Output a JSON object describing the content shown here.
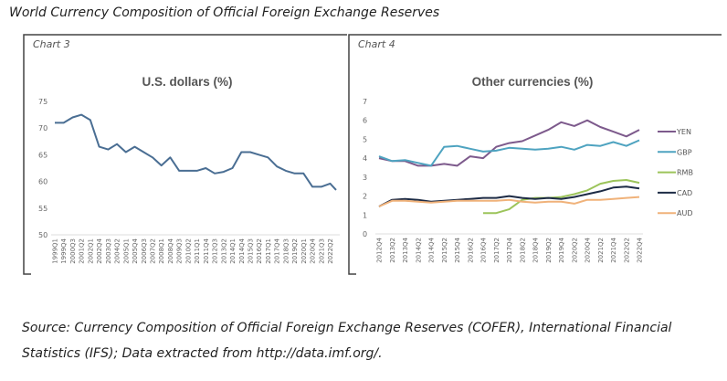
{
  "header": "World Currency Composition of Official Foreign Exchange Reserves",
  "source": "Source: Currency Composition of Official Foreign Exchange Reserves (COFER), International Financial Statistics (IFS); Data extracted from http://data.imf.org/.",
  "chart_data": [
    {
      "type": "line",
      "label": "Chart 3",
      "title": "U.S. dollars (%)",
      "ylim": [
        50,
        75
      ],
      "yticks": [
        50,
        55,
        60,
        65,
        70,
        75
      ],
      "xtick_labels": [
        "1999Q1",
        "1999Q4",
        "2000Q3",
        "2001Q2",
        "2002Q1",
        "2002Q4",
        "2003Q3",
        "2004Q2",
        "2005Q1",
        "2005Q4",
        "2006Q3",
        "2007Q2",
        "2008Q1",
        "2008Q4",
        "2009Q3",
        "2010Q2",
        "2011Q1",
        "2011Q4",
        "2012Q3",
        "2013Q2",
        "2014Q1",
        "2014Q4",
        "2015Q3",
        "2016Q2",
        "2017Q1",
        "2017Q4",
        "2018Q3",
        "2019Q2",
        "2020Q1",
        "2020Q4",
        "2021Q3",
        "2022Q2"
      ],
      "x": [
        "1999Q1",
        "1999Q4",
        "2000Q3",
        "2001Q2",
        "2002Q1",
        "2002Q4",
        "2003Q3",
        "2004Q2",
        "2005Q1",
        "2005Q4",
        "2006Q3",
        "2007Q2",
        "2008Q1",
        "2008Q4",
        "2009Q3",
        "2010Q2",
        "2011Q1",
        "2011Q4",
        "2012Q3",
        "2013Q2",
        "2014Q1",
        "2014Q4",
        "2015Q3",
        "2016Q2",
        "2017Q1",
        "2017Q4",
        "2018Q3",
        "2019Q2",
        "2020Q1",
        "2020Q4",
        "2021Q3",
        "2022Q2",
        "2022Q4"
      ],
      "series": [
        {
          "name": "U.S. dollars",
          "color": "#4a6e93",
          "values": [
            71.0,
            71.0,
            72.0,
            72.5,
            71.5,
            66.5,
            66.0,
            67.0,
            65.5,
            66.5,
            65.5,
            64.5,
            63.0,
            64.5,
            62.0,
            62.0,
            62.0,
            62.5,
            61.5,
            61.8,
            62.5,
            65.5,
            65.5,
            65.0,
            64.5,
            62.8,
            62.0,
            61.5,
            61.5,
            59.0,
            59.0,
            59.6,
            58.4
          ]
        }
      ]
    },
    {
      "type": "line",
      "label": "Chart 4",
      "title": "Other currencies (%)",
      "ylim": [
        0,
        7
      ],
      "yticks": [
        0,
        1,
        2,
        3,
        4,
        5,
        6,
        7
      ],
      "x": [
        "2012Q4",
        "2013Q2",
        "2013Q4",
        "2014Q2",
        "2014Q4",
        "2015Q2",
        "2015Q4",
        "2016Q2",
        "2016Q4",
        "2017Q2",
        "2017Q4",
        "2018Q2",
        "2018Q4",
        "2019Q2",
        "2019Q4",
        "2020Q2",
        "2020Q4",
        "2021Q2",
        "2021Q4",
        "2022Q2",
        "2022Q4"
      ],
      "legend_position": "right",
      "series": [
        {
          "name": "YEN",
          "color": "#7d5a8c",
          "values": [
            4.0,
            3.85,
            3.85,
            3.6,
            3.6,
            3.7,
            3.6,
            4.1,
            4.0,
            4.6,
            4.8,
            4.9,
            5.2,
            5.5,
            5.9,
            5.7,
            6.0,
            5.65,
            5.4,
            5.15,
            5.5
          ]
        },
        {
          "name": "GBP",
          "color": "#4ea3c0",
          "values": [
            4.1,
            3.85,
            3.9,
            3.75,
            3.6,
            4.6,
            4.65,
            4.5,
            4.35,
            4.4,
            4.55,
            4.5,
            4.45,
            4.5,
            4.6,
            4.45,
            4.7,
            4.65,
            4.85,
            4.65,
            4.95
          ]
        },
        {
          "name": "RMB",
          "color": "#9cc45a",
          "values": [
            null,
            null,
            null,
            null,
            null,
            null,
            null,
            null,
            1.1,
            1.1,
            1.3,
            1.8,
            1.9,
            1.9,
            1.95,
            2.1,
            2.3,
            2.65,
            2.8,
            2.85,
            2.7
          ]
        },
        {
          "name": "CAD",
          "color": "#1d2b45",
          "values": [
            1.45,
            1.8,
            1.85,
            1.8,
            1.7,
            1.75,
            1.8,
            1.85,
            1.9,
            1.9,
            2.0,
            1.9,
            1.85,
            1.9,
            1.85,
            1.95,
            2.1,
            2.25,
            2.45,
            2.5,
            2.4
          ]
        },
        {
          "name": "AUD",
          "color": "#f0b27a",
          "values": [
            1.45,
            1.75,
            1.75,
            1.7,
            1.65,
            1.7,
            1.75,
            1.75,
            1.75,
            1.75,
            1.8,
            1.7,
            1.65,
            1.7,
            1.7,
            1.6,
            1.8,
            1.8,
            1.85,
            1.9,
            1.95
          ]
        }
      ]
    }
  ]
}
